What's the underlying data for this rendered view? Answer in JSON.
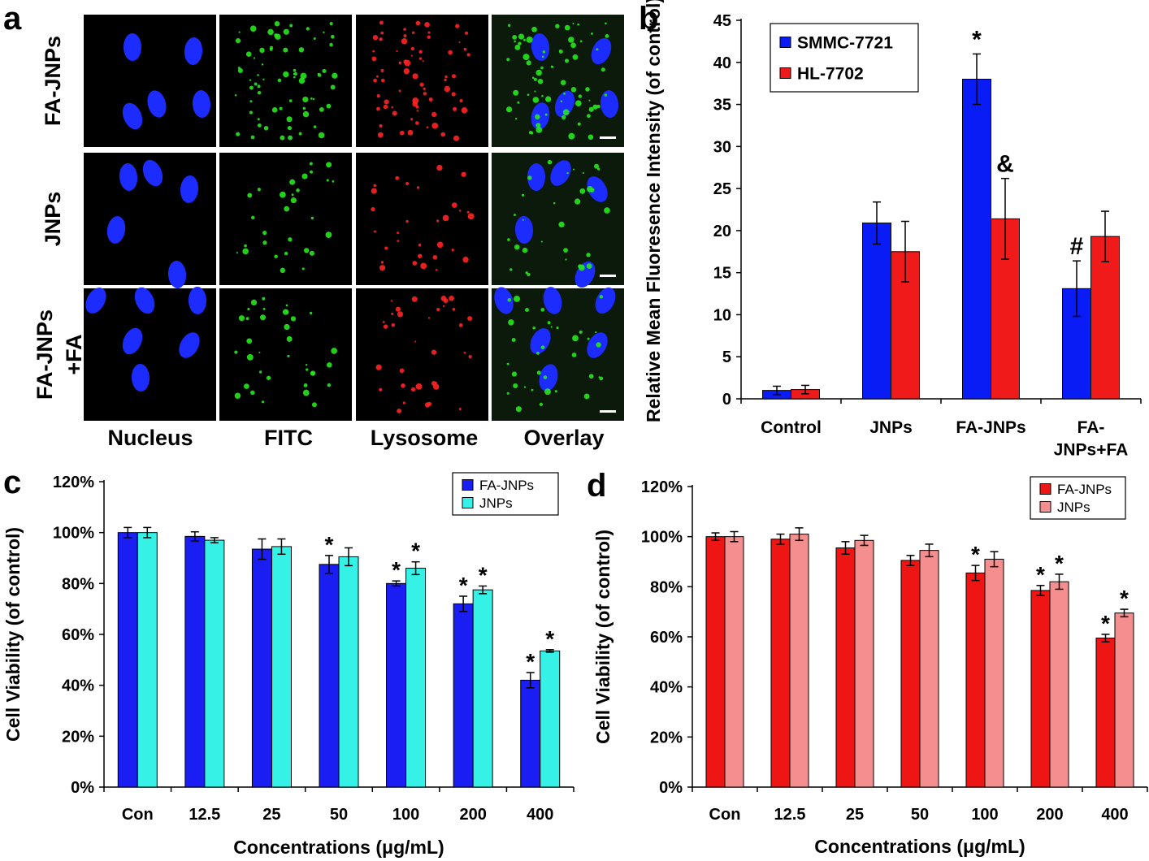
{
  "panel_letters": [
    "a",
    "b",
    "c",
    "d"
  ],
  "microscopy": {
    "row_labels": [
      "FA-JNPs",
      "JNPs",
      "FA-JNPs\n+FA"
    ],
    "column_labels": [
      "Nucleus",
      "FITC",
      "Lysosome",
      "Overlay"
    ],
    "colors": {
      "nucleus": "#1c2cff",
      "fitc": "#27e61e",
      "lysosome": "#ff2424",
      "scale_bar": "#ffffff"
    }
  },
  "chart_data": [
    {
      "panel": "b",
      "type": "bar",
      "title": "",
      "xlabel": "",
      "ylabel": "Relative Mean Fluoresence Intensity (of control)",
      "ylim": [
        0,
        45
      ],
      "yticks": [
        0,
        5,
        10,
        15,
        20,
        25,
        30,
        35,
        40,
        45
      ],
      "categories": [
        "Control",
        "JNPs",
        "FA-JNPs",
        "FA-\nJNPs+FA"
      ],
      "series": [
        {
          "name": "SMMC-7721",
          "color": "#0a1cf5",
          "values": [
            1.0,
            20.9,
            38.0,
            13.1
          ],
          "errors": [
            0.5,
            2.5,
            3.0,
            3.3
          ],
          "markers": [
            "",
            "",
            "*",
            "#"
          ]
        },
        {
          "name": "HL-7702",
          "color": "#f01a1a",
          "values": [
            1.1,
            17.5,
            21.4,
            19.3
          ],
          "errors": [
            0.5,
            3.6,
            4.8,
            3.0
          ],
          "markers": [
            "",
            "",
            "&",
            ""
          ]
        }
      ],
      "legend_position": "top-left",
      "grid": false
    },
    {
      "panel": "c",
      "type": "bar",
      "title": "",
      "xlabel": "Concentrations (μg/mL)",
      "ylabel": "Cell Viability (of control)",
      "ylim": [
        0,
        120
      ],
      "yticks": [
        "0%",
        "20%",
        "40%",
        "60%",
        "80%",
        "100%",
        "120%"
      ],
      "categories": [
        "Con",
        "12.5",
        "25",
        "50",
        "100",
        "200",
        "400"
      ],
      "series": [
        {
          "name": "FA-JNPs",
          "color": "#1a1ef2",
          "values": [
            100,
            98.5,
            93.5,
            87.5,
            80,
            72,
            42
          ],
          "errors": [
            2,
            1.8,
            4,
            3.5,
            1,
            3,
            3
          ],
          "markers": [
            "",
            "",
            "",
            "*",
            "*",
            "*",
            "*"
          ]
        },
        {
          "name": "JNPs",
          "color": "#36f2e6",
          "values": [
            100,
            97,
            94.5,
            90.5,
            86,
            77.5,
            53.5
          ],
          "errors": [
            2,
            1,
            3,
            3.5,
            2.5,
            1.5,
            0.5
          ],
          "markers": [
            "",
            "",
            "",
            "",
            "*",
            "*",
            "*"
          ]
        }
      ],
      "legend_position": "top-right",
      "grid": false
    },
    {
      "panel": "d",
      "type": "bar",
      "title": "",
      "xlabel": "Concentrations (μg/mL)",
      "ylabel": "Cell Viability (of control)",
      "ylim": [
        0,
        120
      ],
      "yticks": [
        "0%",
        "20%",
        "40%",
        "60%",
        "80%",
        "100%",
        "120%"
      ],
      "categories": [
        "Con",
        "12.5",
        "25",
        "50",
        "100",
        "200",
        "400"
      ],
      "series": [
        {
          "name": "FA-JNPs",
          "color": "#ee1515",
          "values": [
            100,
            99,
            95.5,
            90.5,
            85.5,
            78.5,
            59.5
          ],
          "errors": [
            1.5,
            2,
            2.5,
            2,
            3,
            2,
            1.5
          ],
          "markers": [
            "",
            "",
            "",
            "",
            "*",
            "*",
            "*"
          ]
        },
        {
          "name": "JNPs",
          "color": "#f58e8e",
          "values": [
            100,
            101,
            98.5,
            94.5,
            91,
            82,
            69.5
          ],
          "errors": [
            2,
            2.5,
            2,
            2.5,
            3,
            3,
            1.5
          ],
          "markers": [
            "",
            "",
            "",
            "",
            "",
            "*",
            "*"
          ]
        }
      ],
      "legend_position": "top-right",
      "grid": false
    }
  ]
}
